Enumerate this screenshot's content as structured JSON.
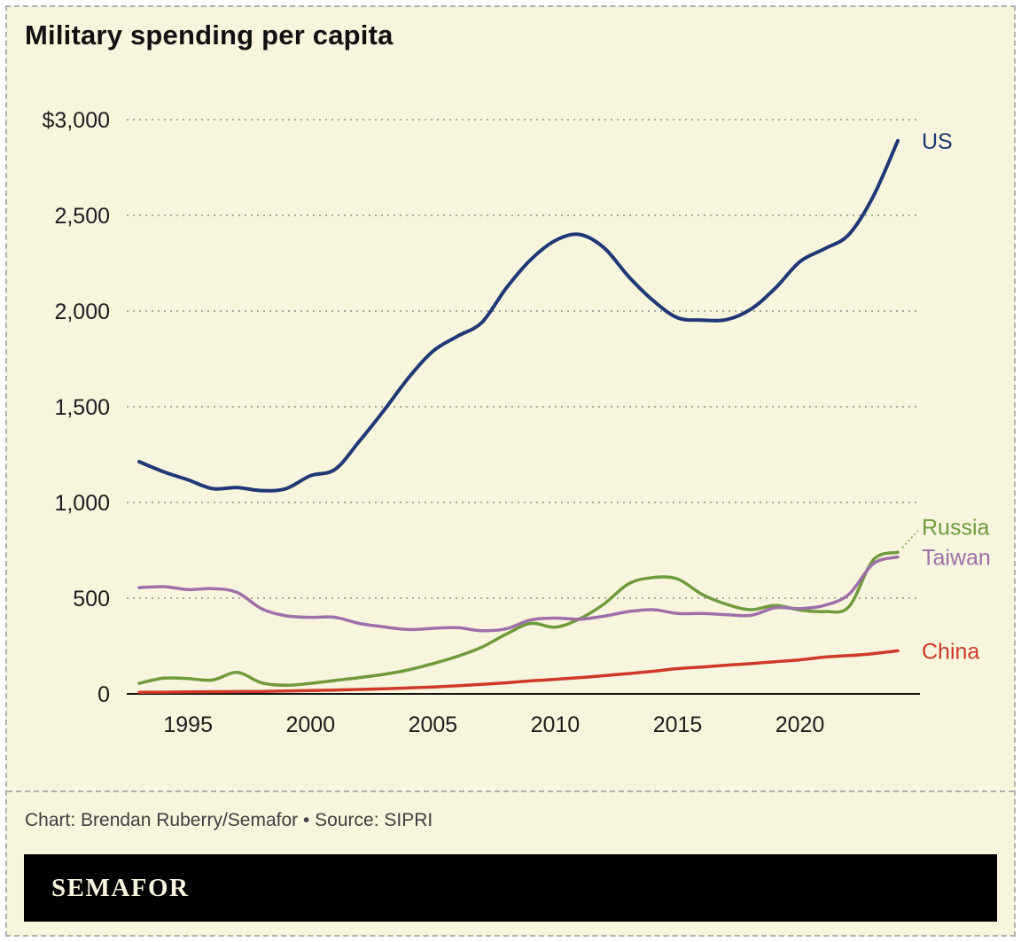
{
  "title": "Military spending per capita",
  "credit": "Chart: Brendan Ruberry/Semafor • Source: SIPRI",
  "logo_text": "SEMAFOR",
  "colors": {
    "background": "#f8f5de",
    "us": "#1f3876",
    "russia": "#6f9b3c",
    "taiwan": "#9e6fa9",
    "china": "#cf3927",
    "grid": "#8f8f8f",
    "axis": "#111111",
    "brandbar": "#000000"
  },
  "chart_data": {
    "type": "line",
    "title": "Military spending per capita",
    "x": [
      1993,
      1994,
      1995,
      1996,
      1997,
      1998,
      1999,
      2000,
      2001,
      2002,
      2003,
      2004,
      2005,
      2006,
      2007,
      2008,
      2009,
      2010,
      2011,
      2012,
      2013,
      2014,
      2015,
      2016,
      2017,
      2018,
      2019,
      2020,
      2021,
      2022,
      2023,
      2024
    ],
    "series": [
      {
        "name": "US",
        "color": "#1f3876",
        "values": [
          1213,
          1160,
          1118,
          1072,
          1078,
          1062,
          1072,
          1140,
          1172,
          1320,
          1480,
          1650,
          1790,
          1868,
          1940,
          2120,
          2268,
          2368,
          2400,
          2330,
          2180,
          2055,
          1965,
          1953,
          1955,
          2010,
          2120,
          2258,
          2325,
          2400,
          2600,
          2890
        ]
      },
      {
        "name": "Russia",
        "color": "#6f9b3c",
        "values": [
          55,
          82,
          80,
          72,
          112,
          58,
          45,
          55,
          70,
          85,
          102,
          125,
          158,
          196,
          244,
          312,
          368,
          348,
          392,
          470,
          575,
          608,
          600,
          520,
          468,
          440,
          462,
          438,
          430,
          455,
          700,
          740
        ]
      },
      {
        "name": "Taiwan",
        "color": "#9e6fa9",
        "values": [
          555,
          560,
          545,
          550,
          530,
          445,
          408,
          400,
          400,
          368,
          350,
          336,
          342,
          346,
          330,
          340,
          386,
          396,
          390,
          406,
          430,
          440,
          420,
          420,
          414,
          410,
          450,
          446,
          462,
          520,
          680,
          715
        ]
      },
      {
        "name": "China",
        "color": "#cf3927",
        "values": [
          8,
          9,
          10,
          11,
          12,
          13,
          15,
          17,
          20,
          23,
          27,
          31,
          36,
          42,
          50,
          58,
          68,
          76,
          85,
          95,
          106,
          118,
          132,
          140,
          150,
          158,
          168,
          178,
          192,
          200,
          210,
          225
        ]
      }
    ],
    "ylim": [
      0,
      3000
    ],
    "yticks": [
      {
        "v": 0,
        "label": "0"
      },
      {
        "v": 500,
        "label": "500"
      },
      {
        "v": 1000,
        "label": "1,000"
      },
      {
        "v": 1500,
        "label": "1,500"
      },
      {
        "v": 2000,
        "label": "2,000"
      },
      {
        "v": 2500,
        "label": "2,500"
      },
      {
        "v": 3000,
        "label": "$3,000"
      }
    ],
    "xticks": [
      1995,
      2000,
      2005,
      2010,
      2015,
      2020
    ],
    "xlabel": "",
    "ylabel": "",
    "grid": "horizontal-dashed",
    "legend_position": "end-of-line-labels"
  }
}
